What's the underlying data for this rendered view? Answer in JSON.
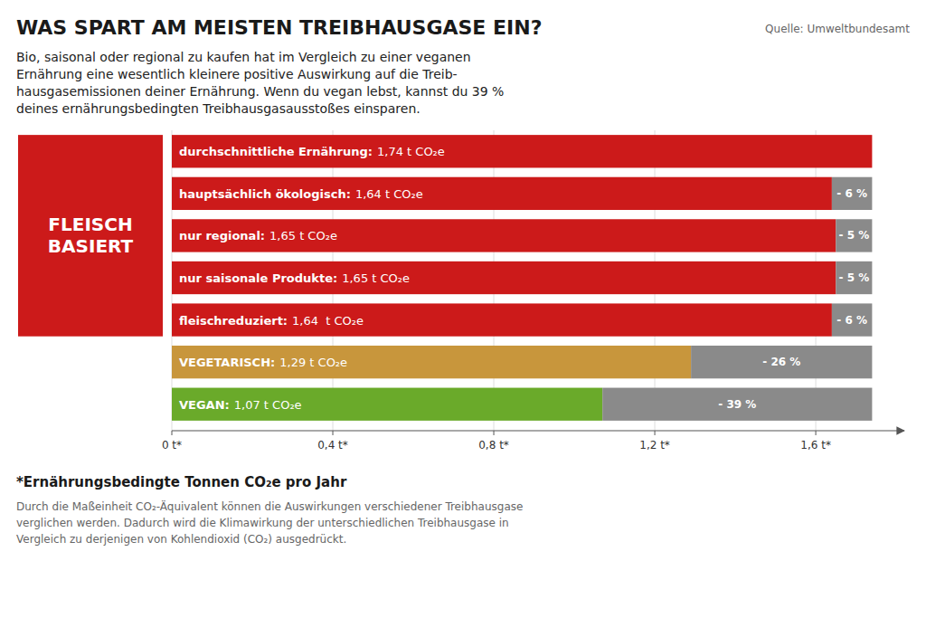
{
  "chart_data": {
    "type": "bar",
    "orientation": "horizontal",
    "title": "WAS SPART AM MEISTEN TREIBHAUSGASE EIN?",
    "subtitle": "Bio, saisonal oder regional zu kaufen hat im Vergleich zu einer veganen\nErnährung eine wesentlich kleinere positive Auswirkung auf die Treib-\nhausgasemissionen deiner Ernährung. Wenn du vegan lebst, kannst du 39 %\ndeines ernährungsbedingten Treibhausgasausstoßes einsparen.",
    "source": "Quelle: Umweltbundesamt",
    "categories": [
      "durchschnittliche Ernährung:",
      "hauptsächlich ökologisch:",
      "nur regional:",
      "nur saisonale Produkte:",
      "fleischreduziert:",
      "VEGETARISCH:",
      "VEGAN:"
    ],
    "values": [
      1.74,
      1.64,
      1.65,
      1.65,
      1.64,
      1.29,
      1.07
    ],
    "value_labels": [
      "1,74 t CO₂e",
      "1,64 t CO₂e",
      "1,65 t CO₂e",
      "1,65 t CO₂e",
      "1,64  t CO₂e",
      "1,29 t CO₂e",
      "1,07 t CO₂e"
    ],
    "data_labels": true,
    "colors": [
      "#cc1a1a",
      "#cc1a1a",
      "#cc1a1a",
      "#cc1a1a",
      "#cc1a1a",
      "#c8963c",
      "#6aaa2a"
    ],
    "reference": 1.74,
    "reduction_labels": [
      null,
      "- 6 %",
      "- 5 %",
      "- 5 %",
      "- 6 %",
      "- 26 %",
      "- 39 %"
    ],
    "annotations": [
      {
        "text": "FLEISCH BASIERT",
        "color": "#cc1a1a",
        "categories": [
          "durchschnittliche Ernährung:",
          "hauptsächlich ökologisch:",
          "nur regional:",
          "nur saisonale Produkte:",
          "fleischreduziert:"
        ]
      }
    ],
    "xlim": [
      0,
      1.82
    ],
    "xticks": [
      {
        "value": 0,
        "label": "0 t*"
      },
      {
        "value": 0.4,
        "label": "0,4 t*"
      },
      {
        "value": 0.8,
        "label": "0,8 t*"
      },
      {
        "value": 1.2,
        "label": "1,2 t*"
      },
      {
        "value": 1.6,
        "label": "1,6 t*"
      }
    ],
    "grid": true,
    "footnote_title": "*Ernährungsbedingte Tonnen CO₂e pro Jahr",
    "footnote": "Durch die Maßeinheit CO₂-Äquivalent können die Auswirkungen verschiedener Treibhausgase\nverglichen werden. Dadurch wird die Klimawirkung der unterschiedlichen Treibhausgase in\nVergleich zu derjenigen von Kohlendioxid (CO₂) ausgedrückt."
  }
}
